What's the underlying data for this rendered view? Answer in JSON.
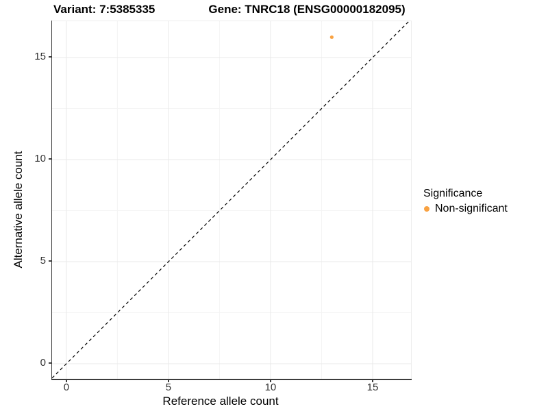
{
  "chart_data": {
    "type": "scatter",
    "title_left": "Variant: 7:5385335",
    "title_right": "Gene: TNRC18 (ENSG00000182095)",
    "xlabel": "Reference allele count",
    "ylabel": "Alternative allele count",
    "xlim": [
      -0.7,
      16.88
    ],
    "ylim": [
      -0.77,
      16.78
    ],
    "x_ticks": [
      0,
      5,
      10,
      15
    ],
    "y_ticks": [
      0,
      5,
      10,
      15
    ],
    "x_minor_ticks": [
      2.5,
      7.5,
      12.5
    ],
    "y_minor_ticks": [
      2.5,
      7.5,
      12.5
    ],
    "grid": true,
    "legend_position": "right",
    "reference_line": {
      "kind": "identity y=x",
      "style": "dashed",
      "color": "#000000"
    },
    "series": [
      {
        "name": "Non-significant",
        "color": "#F9A242",
        "points": [
          [
            13,
            16
          ]
        ]
      }
    ],
    "legend": {
      "title": "Significance",
      "entries": [
        {
          "label": "Non-significant",
          "color": "#F9A242"
        }
      ]
    },
    "colors": {
      "grid_major": "#e9e9e9",
      "grid_minor": "#f4f4f4",
      "axis_line": "#3c3c3c",
      "tick_text": "#303030",
      "point_orange": "#F9A242"
    }
  }
}
